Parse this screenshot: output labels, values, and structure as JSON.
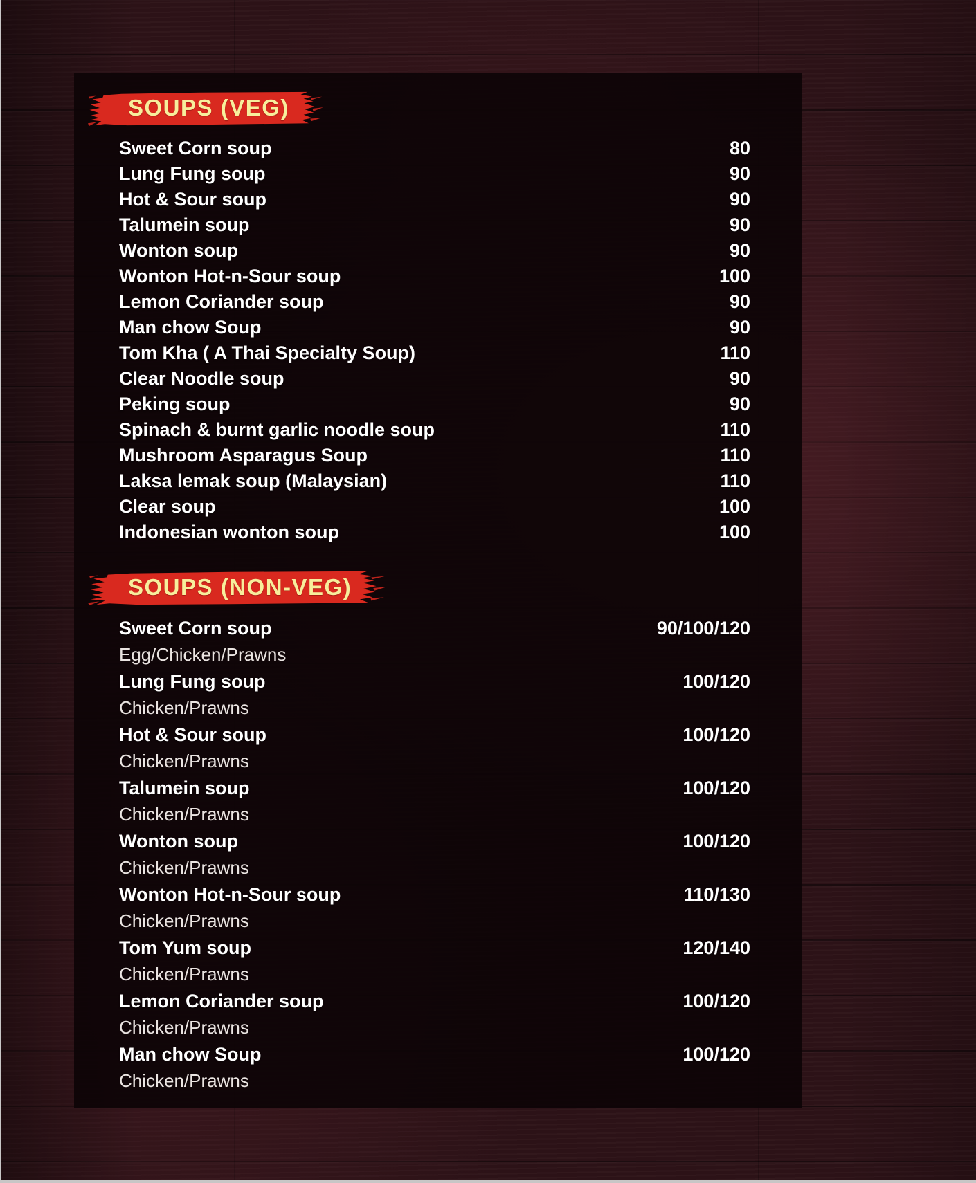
{
  "colors": {
    "brush_red": "#d9291f",
    "header_yellow": "#f7ee9c",
    "item_text": "#ffffff",
    "variant_text": "#eae4e1",
    "panel_bg": "#120507",
    "wood_base": "#2e1318"
  },
  "menu": {
    "sections": [
      {
        "id": "veg",
        "title": "SOUPS (VEG)",
        "items": [
          {
            "name": "Sweet Corn soup",
            "price": "80"
          },
          {
            "name": "Lung Fung soup",
            "price": "90"
          },
          {
            "name": "Hot & Sour soup",
            "price": "90"
          },
          {
            "name": "Talumein soup",
            "price": "90"
          },
          {
            "name": "Wonton soup",
            "price": "90"
          },
          {
            "name": "Wonton Hot-n-Sour soup",
            "price": "100"
          },
          {
            "name": "Lemon Coriander soup",
            "price": "90"
          },
          {
            "name": "Man chow Soup",
            "price": "90"
          },
          {
            "name": "Tom Kha ( A Thai Specialty Soup)",
            "price": "110"
          },
          {
            "name": "Clear Noodle soup",
            "price": "90"
          },
          {
            "name": "Peking soup",
            "price": "90"
          },
          {
            "name": "Spinach & burnt garlic noodle soup",
            "price": "110"
          },
          {
            "name": "Mushroom Asparagus Soup",
            "price": "110"
          },
          {
            "name": "Laksa lemak soup (Malaysian)",
            "price": "110"
          },
          {
            "name": "Clear soup",
            "price": "100"
          },
          {
            "name": "Indonesian wonton soup",
            "price": "100"
          }
        ]
      },
      {
        "id": "nonveg",
        "title": "SOUPS (NON-VEG)",
        "items": [
          {
            "name": "Sweet Corn soup",
            "sub": "Egg/Chicken/Prawns",
            "price": "90/100/120"
          },
          {
            "name": "Lung Fung soup",
            "sub": "Chicken/Prawns",
            "price": "100/120"
          },
          {
            "name": "Hot & Sour soup",
            "sub": "Chicken/Prawns",
            "price": "100/120"
          },
          {
            "name": "Talumein soup",
            "sub": "Chicken/Prawns",
            "price": "100/120"
          },
          {
            "name": "Wonton soup",
            "sub": "Chicken/Prawns",
            "price": "100/120"
          },
          {
            "name": "Wonton Hot-n-Sour soup",
            "sub": "Chicken/Prawns",
            "price": "110/130"
          },
          {
            "name": "Tom Yum soup",
            "sub": "Chicken/Prawns",
            "price": "120/140"
          },
          {
            "name": "Lemon Coriander soup",
            "sub": "Chicken/Prawns",
            "price": "100/120"
          },
          {
            "name": "Man chow Soup",
            "sub": "Chicken/Prawns",
            "price": "100/120"
          }
        ]
      }
    ]
  }
}
